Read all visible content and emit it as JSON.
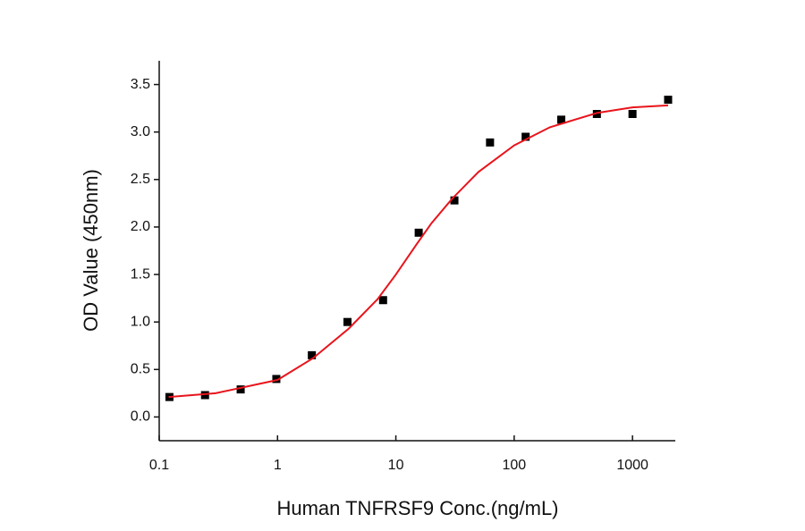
{
  "chart_data": {
    "type": "scatter",
    "x_label": "Human TNFRSF9 Conc.(ng/mL)",
    "y_label": "OD Value (450nm)",
    "x_scale": "log",
    "xlim": [
      0.1,
      2300
    ],
    "ylim": [
      -0.25,
      3.75
    ],
    "xticks": [
      0.1,
      1,
      10,
      100,
      1000
    ],
    "yticks": [
      {
        "value": 0,
        "label": "0.0"
      },
      0.5,
      {
        "value": 1,
        "label": "1.0"
      },
      1.5,
      {
        "value": 2,
        "label": "2.0"
      },
      2.5,
      {
        "value": 3,
        "label": "3.0"
      },
      3.5
    ],
    "series": [
      {
        "kind": "points",
        "color": "#000000",
        "x": [
          0.122,
          0.244,
          0.488,
          0.977,
          1.95,
          3.9,
          7.8,
          15.6,
          31.25,
          62.5,
          125,
          250,
          500,
          1000,
          2000
        ],
        "values": [
          0.21,
          0.23,
          0.29,
          0.4,
          0.65,
          1.0,
          1.23,
          1.94,
          2.28,
          2.89,
          2.95,
          3.13,
          3.19,
          3.19,
          3.34
        ]
      },
      {
        "kind": "curve",
        "color": "#e8141c",
        "x": [
          0.12,
          0.3,
          1,
          2,
          4,
          7,
          10,
          15,
          20,
          30,
          50,
          100,
          200,
          500,
          1000,
          2000
        ],
        "values": [
          0.21,
          0.25,
          0.39,
          0.62,
          0.93,
          1.24,
          1.5,
          1.82,
          2.04,
          2.3,
          2.58,
          2.86,
          3.05,
          3.2,
          3.26,
          3.28
        ]
      }
    ]
  }
}
